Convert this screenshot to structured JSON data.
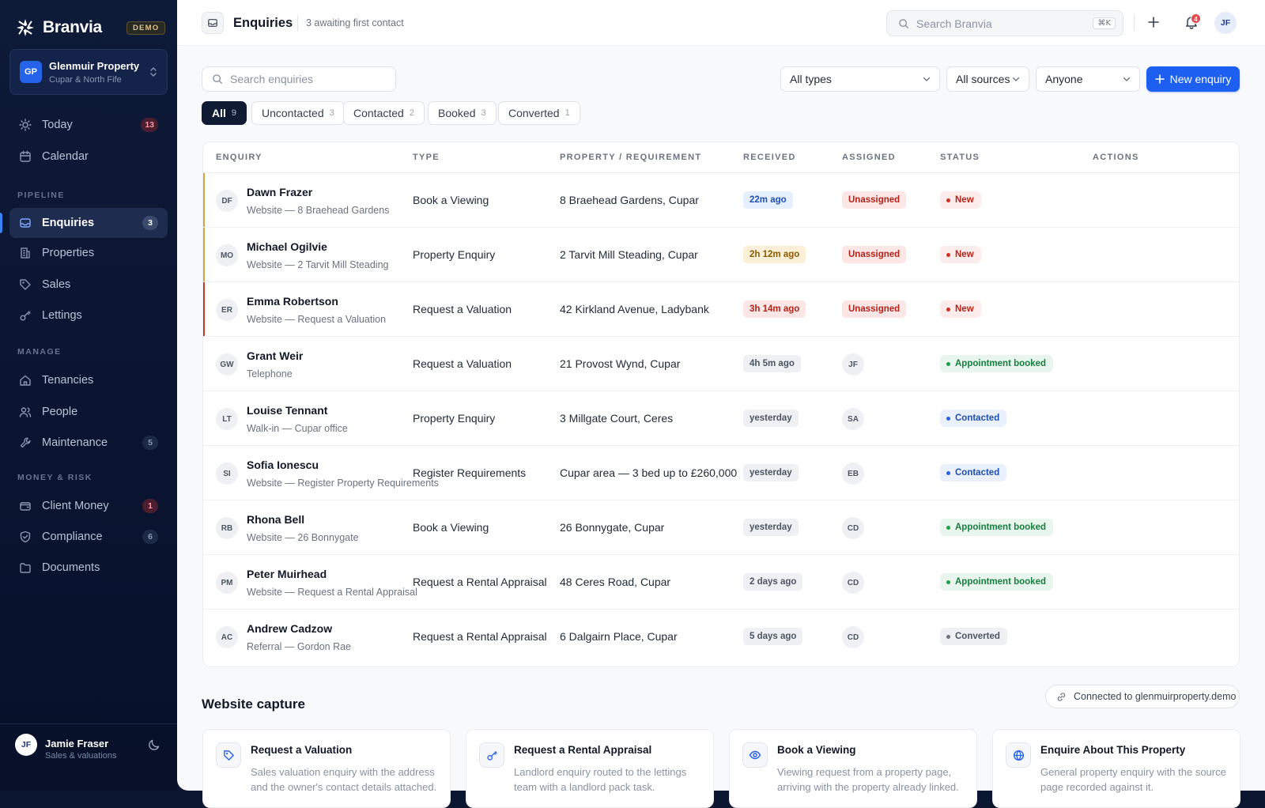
{
  "brand": {
    "name": "Branvia",
    "badge": "DEMO"
  },
  "org": {
    "initials": "GP",
    "name": "Glenmuir Property",
    "subtitle": "Cupar & North Fife"
  },
  "nav": {
    "today": {
      "label": "Today",
      "badge": "13"
    },
    "calendar": {
      "label": "Calendar"
    },
    "section_pipeline": "PIPELINE",
    "enquiries": {
      "label": "Enquiries",
      "badge": "3"
    },
    "properties": {
      "label": "Properties"
    },
    "sales": {
      "label": "Sales"
    },
    "lettings": {
      "label": "Lettings"
    },
    "section_manage": "MANAGE",
    "tenancies": {
      "label": "Tenancies"
    },
    "people": {
      "label": "People"
    },
    "maintenance": {
      "label": "Maintenance",
      "badge": "5"
    },
    "section_money": "MONEY & RISK",
    "client_money": {
      "label": "Client Money",
      "badge": "1"
    },
    "compliance": {
      "label": "Compliance",
      "badge": "6"
    },
    "documents": {
      "label": "Documents"
    }
  },
  "user": {
    "initials": "JF",
    "name": "Jamie Fraser",
    "role": "Sales & valuations"
  },
  "topbar": {
    "title": "Enquiries",
    "subtitle": "3 awaiting first contact",
    "search_placeholder": "Search Branvia",
    "shortcut": "⌘K",
    "notifications": "4",
    "me_initials": "JF"
  },
  "filters": {
    "search_placeholder": "Search enquiries",
    "type": "All types",
    "source": "All sources",
    "assignee": "Anyone",
    "new_button": "New enquiry"
  },
  "tabs": [
    {
      "label": "All",
      "count": "9"
    },
    {
      "label": "Uncontacted",
      "count": "3"
    },
    {
      "label": "Contacted",
      "count": "2"
    },
    {
      "label": "Booked",
      "count": "3"
    },
    {
      "label": "Converted",
      "count": "1"
    }
  ],
  "table": {
    "headers": {
      "enquiry": "ENQUIRY",
      "type": "TYPE",
      "property": "PROPERTY / REQUIREMENT",
      "received": "RECEIVED",
      "assigned": "ASSIGNED",
      "status": "STATUS",
      "actions": "ACTIONS"
    },
    "rows": [
      {
        "initials": "DF",
        "name": "Dawn Frazer",
        "source": "Website — 8 Braehead Gardens",
        "type": "Book a Viewing",
        "property": "8 Braehead Gardens, Cupar",
        "received": "22m ago",
        "assigned": "Unassigned",
        "status": "New"
      },
      {
        "initials": "MO",
        "name": "Michael Ogilvie",
        "source": "Website — 2 Tarvit Mill Steading",
        "type": "Property Enquiry",
        "property": "2 Tarvit Mill Steading, Cupar",
        "received": "2h 12m ago",
        "assigned": "Unassigned",
        "status": "New"
      },
      {
        "initials": "ER",
        "name": "Emma Robertson",
        "source": "Website — Request a Valuation",
        "type": "Request a Valuation",
        "property": "42 Kirkland Avenue, Ladybank",
        "received": "3h 14m ago",
        "assigned": "Unassigned",
        "status": "New"
      },
      {
        "initials": "GW",
        "name": "Grant Weir",
        "source": "Telephone",
        "type": "Request a Valuation",
        "property": "21 Provost Wynd, Cupar",
        "received": "4h 5m ago",
        "assigned": "JF",
        "status": "Appointment booked"
      },
      {
        "initials": "LT",
        "name": "Louise Tennant",
        "source": "Walk-in — Cupar office",
        "type": "Property Enquiry",
        "property": "3 Millgate Court, Ceres",
        "received": "yesterday",
        "assigned": "SA",
        "status": "Contacted"
      },
      {
        "initials": "SI",
        "name": "Sofia Ionescu",
        "source": "Website — Register Property Requirements",
        "type": "Register Requirements",
        "property": "Cupar area — 3 bed up to £260,000",
        "received": "yesterday",
        "assigned": "EB",
        "status": "Contacted"
      },
      {
        "initials": "RB",
        "name": "Rhona Bell",
        "source": "Website — 26 Bonnygate",
        "type": "Book a Viewing",
        "property": "26 Bonnygate, Cupar",
        "received": "yesterday",
        "assigned": "CD",
        "status": "Appointment booked"
      },
      {
        "initials": "PM",
        "name": "Peter Muirhead",
        "source": "Website — Request a Rental Appraisal",
        "type": "Request a Rental Appraisal",
        "property": "48 Ceres Road, Cupar",
        "received": "2 days ago",
        "assigned": "CD",
        "status": "Appointment booked"
      },
      {
        "initials": "AC",
        "name": "Andrew Cadzow",
        "source": "Referral — Gordon Rae",
        "type": "Request a Rental Appraisal",
        "property": "6 Dalgairn Place, Cupar",
        "received": "5 days ago",
        "assigned": "CD",
        "status": "Converted"
      }
    ]
  },
  "capture": {
    "title": "Website capture",
    "connected": "Connected to glenmuirproperty.demo",
    "cards": [
      {
        "title": "Request a Valuation",
        "desc": "Sales valuation enquiry with the address and the owner's contact details attached."
      },
      {
        "title": "Request a Rental Appraisal",
        "desc": "Landlord enquiry routed to the lettings team with a landlord pack task."
      },
      {
        "title": "Book a Viewing",
        "desc": "Viewing request from a property page, arriving with the property already linked."
      },
      {
        "title": "Enquire About This Property",
        "desc": "General property enquiry with the source page recorded against it."
      }
    ]
  },
  "colors": {
    "accent": "#1d5ff0",
    "sidebar": "#0d1a38",
    "danger": "#b42318",
    "success": "#157f3d",
    "warning": "#8a5a00"
  }
}
